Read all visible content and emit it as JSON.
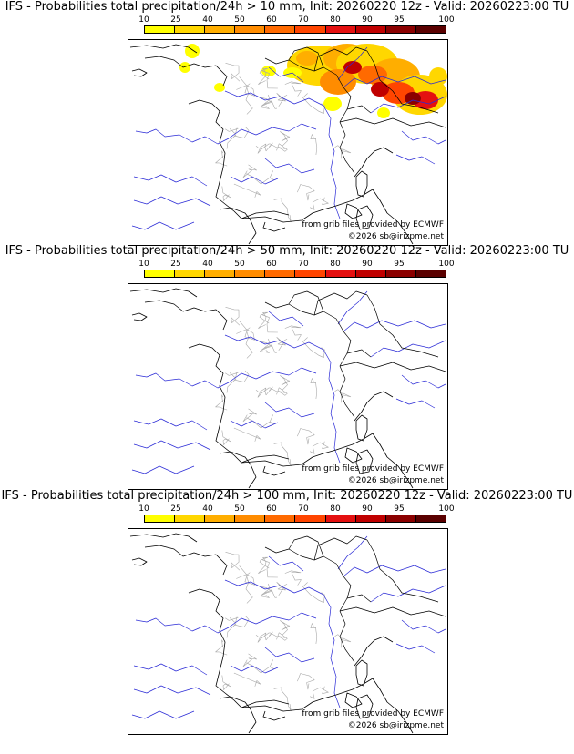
{
  "panels": [
    {
      "title": "IFS - Probabilities total precipitation/24h > 10 mm, Init: 20260220 12z - Valid: 20260223:00 TU",
      "credit_source": "from grib files provided by ECMWF",
      "credit_copyright": "©2026 sb@irizpme.net",
      "has_precip": true
    },
    {
      "title": "IFS - Probabilities total precipitation/24h > 50 mm, Init: 20260220 12z - Valid: 20260223:00 TU",
      "credit_source": "from grib files provided by ECMWF",
      "credit_copyright": "©2026 sb@irizpme.net",
      "has_precip": false
    },
    {
      "title": "IFS - Probabilities total precipitation/24h > 100 mm, Init: 20260220 12z - Valid: 20260223:00 TU",
      "credit_source": "from grib files provided by ECMWF",
      "credit_copyright": "©2026 sb@irizpme.net",
      "has_precip": false
    }
  ],
  "colorscale": {
    "labels": [
      "10",
      "25",
      "40",
      "50",
      "60",
      "70",
      "80",
      "90",
      "95",
      "100"
    ],
    "colors": [
      "#ffff00",
      "#ffd700",
      "#ffae00",
      "#ff8c00",
      "#ff6a00",
      "#ff4500",
      "#e41010",
      "#c00000",
      "#8b0000",
      "#5a0000"
    ]
  },
  "map_colors": {
    "coast": "#000000",
    "borders": "#000000",
    "regions": "#a8a8a8",
    "rivers": "#2a2ad6"
  }
}
